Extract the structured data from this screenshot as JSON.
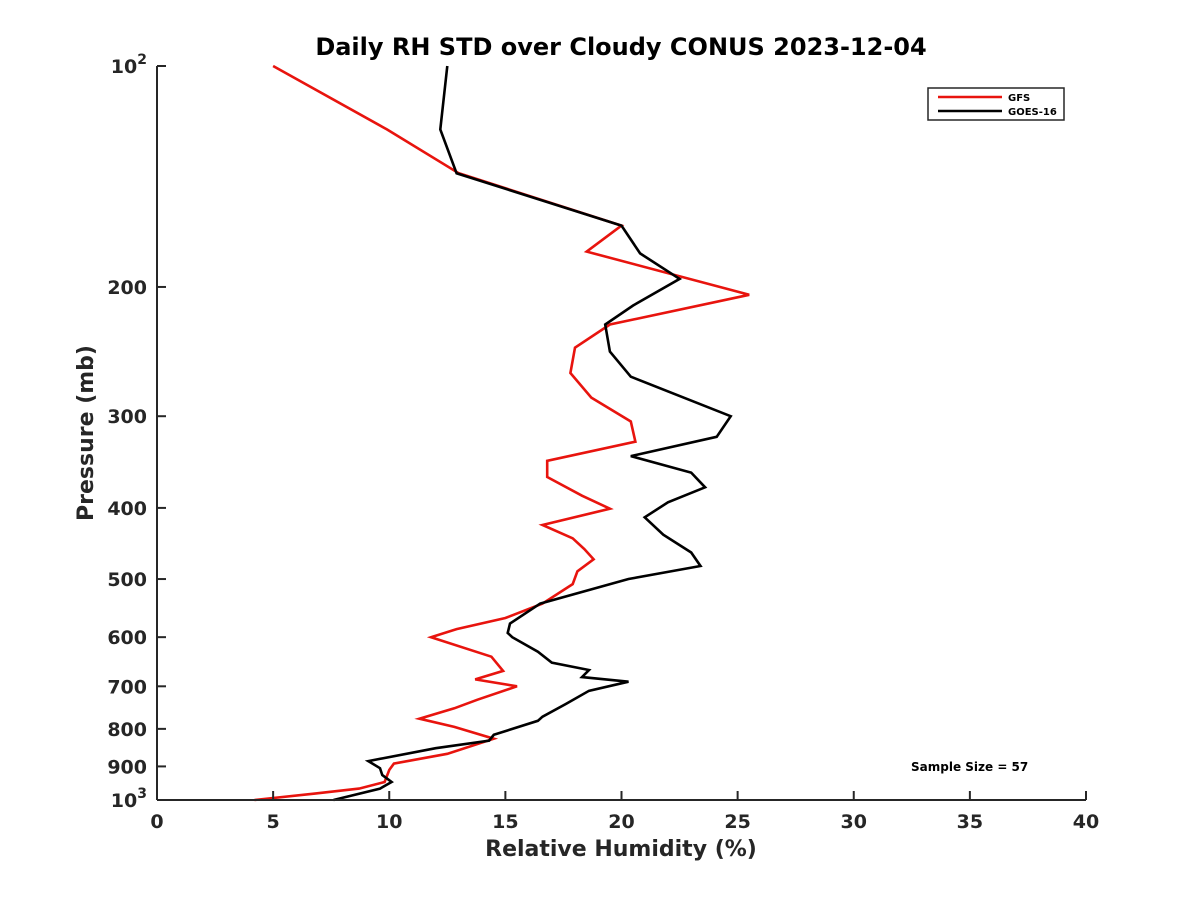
{
  "chart_data": {
    "type": "line",
    "title": "Daily RH STD over Cloudy CONUS 2023-12-04",
    "xlabel": "Relative Humidity (%)",
    "ylabel": "Pressure (mb)",
    "xlim": [
      0,
      40
    ],
    "ylim": [
      100,
      1000
    ],
    "y_scale": "log",
    "y_reversed": true,
    "x_ticks": [
      0,
      5,
      10,
      15,
      20,
      25,
      30,
      35,
      40
    ],
    "x_tick_labels": [
      "0",
      "5",
      "10",
      "15",
      "20",
      "25",
      "30",
      "35",
      "40"
    ],
    "y_ticks": [
      100,
      200,
      300,
      400,
      500,
      600,
      700,
      800,
      900,
      1000
    ],
    "y_tick_labels": [
      {
        "base": "10",
        "exp": "2"
      },
      {
        "base": "200"
      },
      {
        "base": "300"
      },
      {
        "base": "400"
      },
      {
        "base": "500"
      },
      {
        "base": "600"
      },
      {
        "base": "700"
      },
      {
        "base": "800"
      },
      {
        "base": "900"
      },
      {
        "base": "10",
        "exp": "3"
      }
    ],
    "grid": false,
    "legend_position": "top-right",
    "annotation": "Sample Size = 57",
    "series": [
      {
        "name": "GFS",
        "color": "#e8140e",
        "points": [
          [
            5.0,
            100
          ],
          [
            9.9,
            122
          ],
          [
            13.0,
            140
          ],
          [
            20.0,
            165
          ],
          [
            18.5,
            179
          ],
          [
            25.5,
            205
          ],
          [
            19.5,
            225
          ],
          [
            18.0,
            242
          ],
          [
            17.8,
            262
          ],
          [
            18.7,
            283
          ],
          [
            20.4,
            305
          ],
          [
            20.6,
            325
          ],
          [
            16.8,
            345
          ],
          [
            16.8,
            363
          ],
          [
            18.3,
            385
          ],
          [
            19.5,
            401
          ],
          [
            16.6,
            422
          ],
          [
            17.9,
            440
          ],
          [
            18.4,
            455
          ],
          [
            18.8,
            470
          ],
          [
            18.1,
            488
          ],
          [
            17.9,
            508
          ],
          [
            16.6,
            540
          ],
          [
            15.0,
            565
          ],
          [
            12.9,
            585
          ],
          [
            11.8,
            600
          ],
          [
            14.4,
            638
          ],
          [
            14.9,
            667
          ],
          [
            13.7,
            685
          ],
          [
            15.5,
            700
          ],
          [
            13.8,
            730
          ],
          [
            12.8,
            750
          ],
          [
            11.3,
            775
          ],
          [
            12.8,
            795
          ],
          [
            14.5,
            825
          ],
          [
            12.5,
            865
          ],
          [
            10.2,
            892
          ],
          [
            10.0,
            910
          ],
          [
            9.8,
            945
          ],
          [
            8.7,
            965
          ],
          [
            6.8,
            980
          ],
          [
            4.2,
            1000
          ]
        ]
      },
      {
        "name": "GOES-16",
        "color": "#000000",
        "points": [
          [
            12.5,
            100
          ],
          [
            12.2,
            122
          ],
          [
            12.9,
            140
          ],
          [
            20.0,
            165
          ],
          [
            20.8,
            180
          ],
          [
            22.5,
            195
          ],
          [
            20.5,
            212
          ],
          [
            19.3,
            225
          ],
          [
            19.5,
            245
          ],
          [
            20.4,
            265
          ],
          [
            24.7,
            300
          ],
          [
            24.1,
            320
          ],
          [
            20.4,
            340
          ],
          [
            23.0,
            358
          ],
          [
            23.6,
            375
          ],
          [
            22.0,
            393
          ],
          [
            21.0,
            412
          ],
          [
            21.8,
            435
          ],
          [
            23.0,
            460
          ],
          [
            23.4,
            480
          ],
          [
            20.3,
            500
          ],
          [
            16.5,
            540
          ],
          [
            15.2,
            575
          ],
          [
            15.1,
            592
          ],
          [
            15.3,
            600
          ],
          [
            16.4,
            628
          ],
          [
            17.0,
            650
          ],
          [
            18.6,
            665
          ],
          [
            18.3,
            680
          ],
          [
            20.3,
            690
          ],
          [
            18.6,
            710
          ],
          [
            17.6,
            740
          ],
          [
            16.6,
            770
          ],
          [
            16.4,
            780
          ],
          [
            14.5,
            815
          ],
          [
            14.3,
            830
          ],
          [
            12.0,
            850
          ],
          [
            9.1,
            885
          ],
          [
            9.6,
            905
          ],
          [
            9.7,
            925
          ],
          [
            10.1,
            945
          ],
          [
            9.6,
            965
          ],
          [
            7.6,
            1000
          ]
        ]
      }
    ]
  }
}
